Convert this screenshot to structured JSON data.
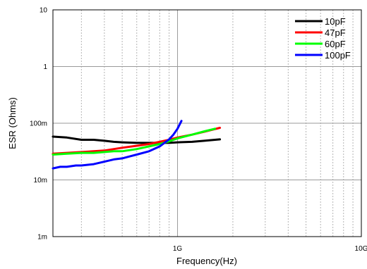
{
  "chart_data": {
    "type": "line",
    "xlabel": "Frequency(Hz)",
    "ylabel": "ESR (Ohms)",
    "x_scale": "log",
    "y_scale": "log",
    "xlim": [
      210000000,
      10000000000
    ],
    "ylim": [
      0.001,
      10
    ],
    "x_tick_labels": [
      {
        "value": 1000000000,
        "label": "1G"
      },
      {
        "value": 10000000000,
        "label": "10G"
      }
    ],
    "y_tick_labels": [
      {
        "value": 10,
        "label": "10"
      },
      {
        "value": 1,
        "label": "1"
      },
      {
        "value": 0.1,
        "label": "100m"
      },
      {
        "value": 0.01,
        "label": "10m"
      },
      {
        "value": 0.001,
        "label": "1m"
      }
    ],
    "grid": true,
    "legend_position": "top-right",
    "series": [
      {
        "name": "10pF",
        "color": "#000000",
        "x": [
          210000000,
          250000000,
          300000000,
          350000000,
          400000000,
          450000000,
          500000000,
          600000000,
          700000000,
          800000000,
          900000000,
          1000000000,
          1200000000,
          1400000000,
          1700000000
        ],
        "y": [
          0.058,
          0.056,
          0.051,
          0.051,
          0.049,
          0.047,
          0.046,
          0.045,
          0.045,
          0.045,
          0.045,
          0.046,
          0.047,
          0.049,
          0.052
        ]
      },
      {
        "name": "47pF",
        "color": "#ff0000",
        "x": [
          210000000,
          250000000,
          300000000,
          350000000,
          400000000,
          450000000,
          500000000,
          600000000,
          700000000,
          800000000,
          900000000,
          1000000000,
          1200000000,
          1400000000,
          1700000000
        ],
        "y": [
          0.029,
          0.03,
          0.031,
          0.032,
          0.033,
          0.035,
          0.037,
          0.04,
          0.043,
          0.047,
          0.051,
          0.056,
          0.063,
          0.071,
          0.083
        ]
      },
      {
        "name": "60pF",
        "color": "#00ff00",
        "x": [
          210000000,
          250000000,
          300000000,
          350000000,
          400000000,
          450000000,
          500000000,
          600000000,
          700000000,
          800000000,
          900000000,
          1000000000,
          1200000000,
          1400000000,
          1600000000
        ],
        "y": [
          0.028,
          0.029,
          0.03,
          0.03,
          0.031,
          0.032,
          0.032,
          0.035,
          0.039,
          0.043,
          0.048,
          0.054,
          0.063,
          0.072,
          0.08
        ]
      },
      {
        "name": "100pF",
        "color": "#0000ff",
        "x": [
          210000000,
          230000000,
          250000000,
          280000000,
          300000000,
          350000000,
          400000000,
          450000000,
          500000000,
          550000000,
          600000000,
          700000000,
          800000000,
          900000000,
          950000000,
          1000000000,
          1050000000
        ],
        "y": [
          0.016,
          0.017,
          0.017,
          0.018,
          0.018,
          0.019,
          0.021,
          0.023,
          0.024,
          0.026,
          0.028,
          0.032,
          0.039,
          0.052,
          0.063,
          0.08,
          0.11
        ]
      }
    ]
  }
}
